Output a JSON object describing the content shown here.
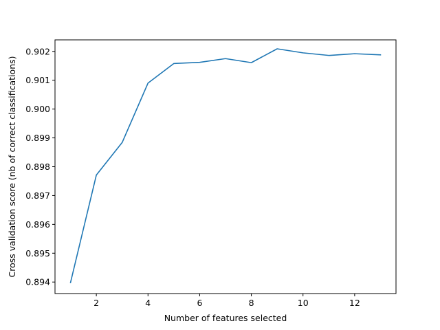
{
  "chart_data": {
    "type": "line",
    "title": "",
    "xlabel": "Number of features selected",
    "ylabel": "Cross validation score (nb of correct classifications)",
    "xlim": [
      0.4,
      13.6
    ],
    "ylim": [
      0.8936,
      0.9024
    ],
    "xticks": [
      2,
      4,
      6,
      8,
      10,
      12
    ],
    "yticks": [
      0.894,
      0.895,
      0.896,
      0.897,
      0.898,
      0.899,
      0.9,
      0.901,
      0.902
    ],
    "ytick_labels": [
      "0.894",
      "0.895",
      "0.896",
      "0.897",
      "0.898",
      "0.899",
      "0.900",
      "0.901",
      "0.902"
    ],
    "grid": false,
    "series": [
      {
        "color": "#1f77b4",
        "x": [
          1,
          2,
          3,
          4,
          5,
          6,
          7,
          8,
          9,
          10,
          11,
          12,
          13
        ],
        "y": [
          0.89398,
          0.89771,
          0.89884,
          0.9009,
          0.90158,
          0.90162,
          0.90175,
          0.90161,
          0.90209,
          0.90195,
          0.90186,
          0.90192,
          0.90188
        ]
      }
    ]
  }
}
